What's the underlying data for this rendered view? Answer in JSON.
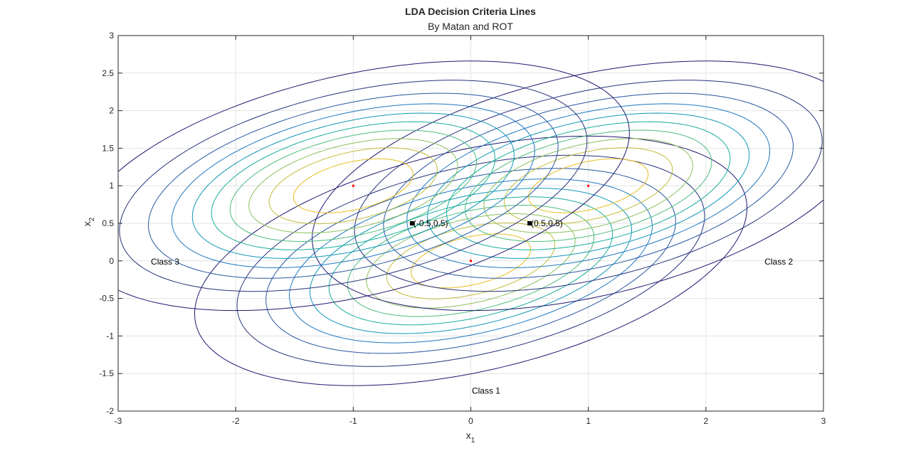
{
  "chart_data": {
    "type": "contour",
    "title": "LDA Decision Criteria Lines",
    "subtitle": "By Matan and ROT",
    "xlabel": {
      "base": "x",
      "sub": "1"
    },
    "ylabel": {
      "base": "x",
      "sub": "2"
    },
    "xlim": [
      -3,
      3
    ],
    "ylim": [
      -2,
      3
    ],
    "xticks": [
      -3,
      -2,
      -1,
      0,
      1,
      2,
      3
    ],
    "yticks": [
      -2,
      -1.5,
      -1,
      -0.5,
      0,
      0.5,
      1,
      1.5,
      2,
      2.5,
      3
    ],
    "xtick_labels": [
      "-3",
      "-2",
      "-1",
      "0",
      "1",
      "2",
      "3"
    ],
    "ytick_labels": [
      "-2",
      "-1.5",
      "-1",
      "-0.5",
      "0",
      "0.5",
      "1",
      "1.5",
      "2",
      "2.5",
      "3"
    ],
    "grid": true,
    "covariance": [
      [
        1.0,
        0.3
      ],
      [
        0.3,
        0.5
      ]
    ],
    "contour_levels": 10,
    "colormap": [
      "#1f1870",
      "#27327a",
      "#2a56a0",
      "#1f78c2",
      "#1297b8",
      "#18ad9c",
      "#4cbb7e",
      "#8cc05c",
      "#c1bd3a",
      "#e6be1f"
    ],
    "series": [
      {
        "name": "Class 1",
        "mean": [
          0,
          0
        ]
      },
      {
        "name": "Class 2",
        "mean": [
          1,
          1
        ]
      },
      {
        "name": "Class 3",
        "mean": [
          -1,
          1
        ]
      }
    ],
    "mean_marker_color": "#ff0000",
    "points": [
      {
        "x": -0.5,
        "y": 0.5,
        "label": "(-0.5,0.5)"
      },
      {
        "x": 0.5,
        "y": 0.5,
        "label": "(0.5,0.5)"
      }
    ],
    "class_labels": [
      {
        "text": "Class 3",
        "x": -2.6,
        "y": 0
      },
      {
        "text": "Class 2",
        "x": 2.62,
        "y": 0
      },
      {
        "text": "Class 1",
        "x": 0.13,
        "y": -1.72
      }
    ]
  }
}
